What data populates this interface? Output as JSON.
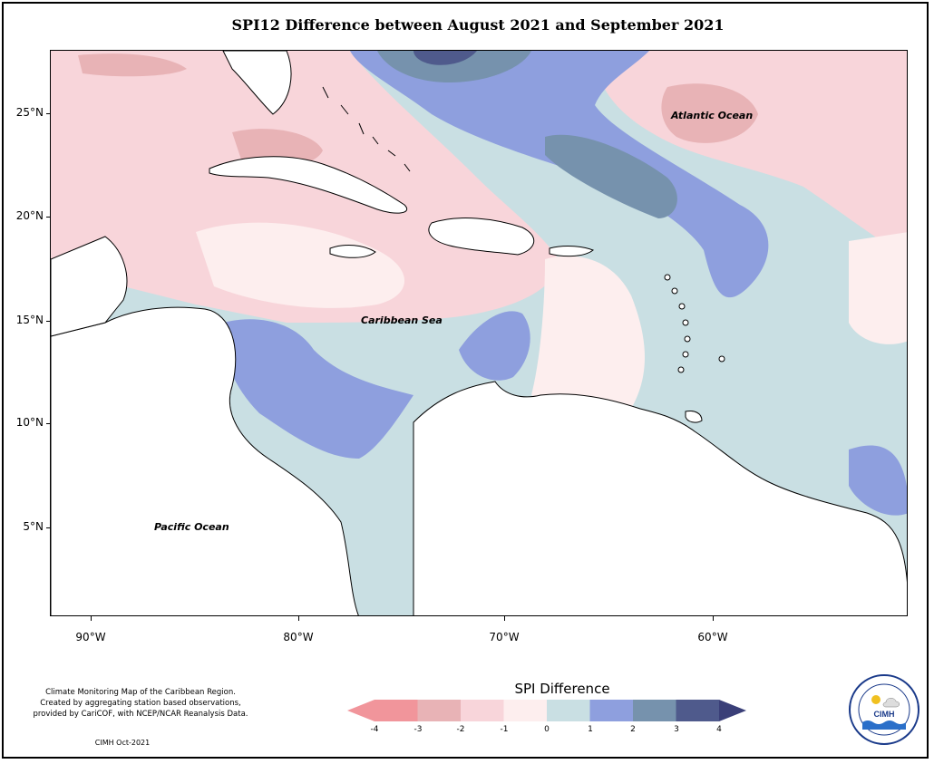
{
  "title": "SPI12 Difference between August 2021 and September 2021",
  "map": {
    "labels": {
      "atlantic": "Atlantic Ocean",
      "caribbean": "Caribbean Sea",
      "pacific": "Pacific Ocean"
    },
    "lat_ticks": [
      "25°N",
      "20°N",
      "15°N",
      "10°N",
      "5°N"
    ],
    "lon_ticks": [
      "90°W",
      "80°W",
      "70°W",
      "60°W"
    ]
  },
  "legend": {
    "title": "SPI Difference",
    "ticks": [
      "-4",
      "-3",
      "-2",
      "-1",
      "0",
      "1",
      "2",
      "3",
      "4"
    ],
    "colors": [
      "#f1959b",
      "#e8b3b6",
      "#f8d5da",
      "#fdeeee",
      "#c9dfe3",
      "#8e9fde",
      "#7692ad",
      "#4f5a8c",
      "#3a3f78"
    ]
  },
  "credits": {
    "line1": "Climate Monitoring Map of the Caribbean Region.",
    "line2": "Created by aggregating station based observations,",
    "line3": "provided by CariCOF, with NCEP/NCAR Reanalysis Data.",
    "date": "CIMH Oct-2021"
  },
  "logo": {
    "text": "CIMH",
    "ring_text": "Caribbean Institute for Meteorology and Hydrology"
  }
}
